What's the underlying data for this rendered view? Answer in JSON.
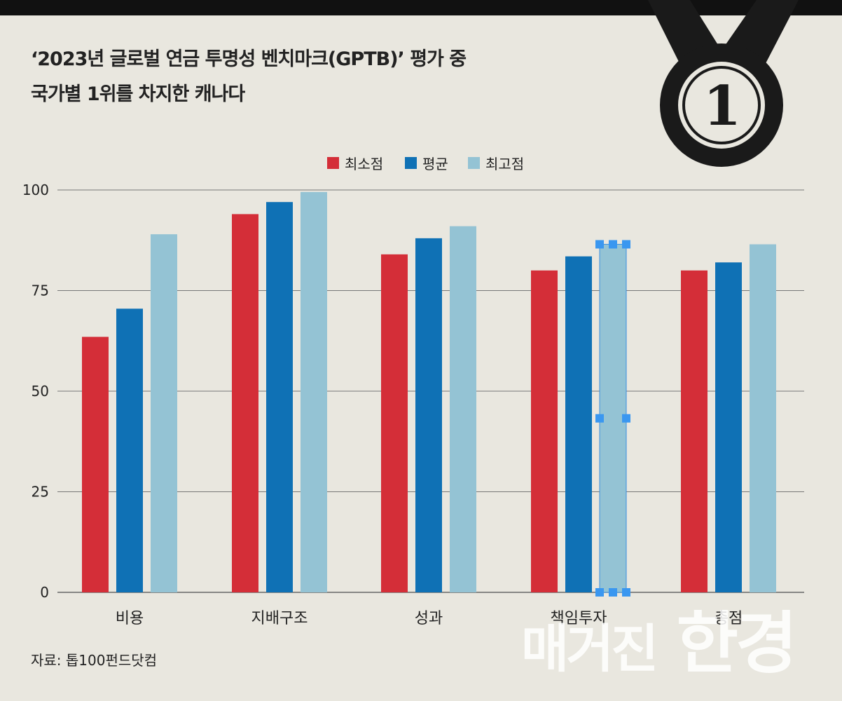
{
  "title_lines": [
    "‘2023년 글로벌 연금 투명성 벤치마크(GPTB)’ 평가 중",
    "국가별 1위를 차지한 캐나다"
  ],
  "medal": {
    "number": "1",
    "color": "#1a1a1a"
  },
  "source": "자료: 톱100펀드닷컴",
  "watermark": {
    "part1": "매거진",
    "part2": "한경"
  },
  "chart_data": {
    "type": "bar",
    "categories": [
      "비용",
      "지배구조",
      "성과",
      "책임투자",
      "총점"
    ],
    "series": [
      {
        "name": "최소점",
        "color": "#d42e38",
        "values": [
          63.5,
          94,
          84,
          80,
          80
        ]
      },
      {
        "name": "평균",
        "color": "#0f71b5",
        "values": [
          70.5,
          97,
          88,
          83.5,
          82
        ]
      },
      {
        "name": "최고점",
        "color": "#94c3d4",
        "values": [
          89,
          99.5,
          91,
          86.5,
          86.5
        ]
      }
    ],
    "yticks": [
      0,
      25,
      50,
      75,
      100
    ],
    "ylim": [
      0,
      100
    ],
    "legend_position": "top-center",
    "grid": true
  }
}
